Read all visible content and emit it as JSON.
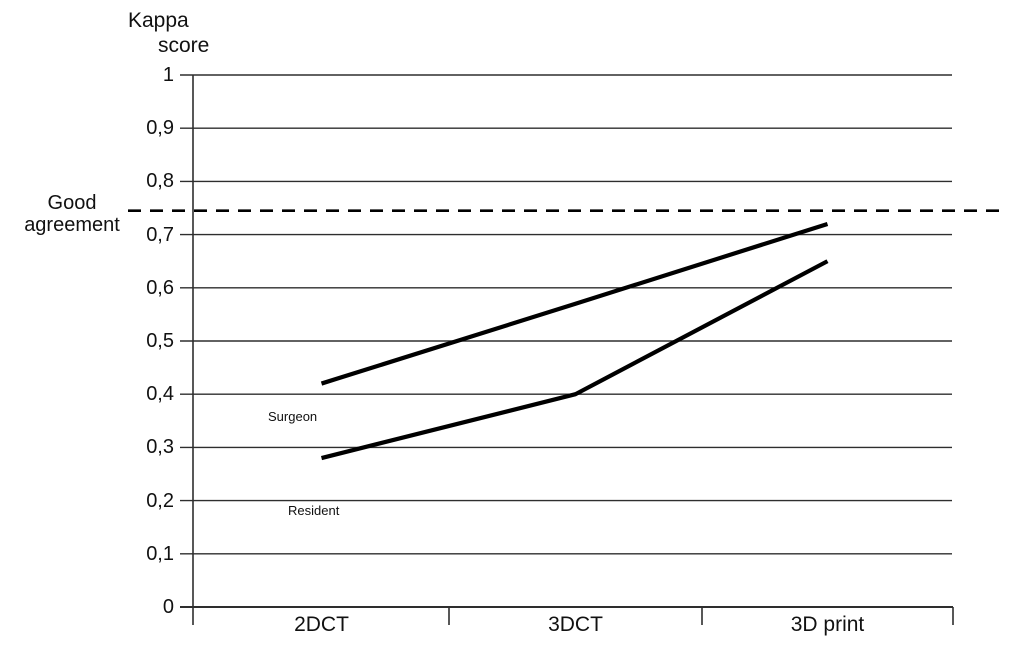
{
  "chart_data": {
    "type": "line",
    "title": "",
    "ylabel": "Kappa score",
    "xlabel": "",
    "categories": [
      "2DCT",
      "3DCT",
      "3D print"
    ],
    "series": [
      {
        "name": "Surgeon",
        "values": [
          0.42,
          0.57,
          0.72
        ]
      },
      {
        "name": "Resident",
        "values": [
          0.28,
          0.4,
          0.65
        ]
      }
    ],
    "ylim": [
      0,
      1
    ],
    "ytick_step": 0.1,
    "ytick_labels": [
      "0",
      "0,1",
      "0,2",
      "0,3",
      "0,4",
      "0,5",
      "0,6",
      "0,7",
      "0,8",
      "0,9",
      "1"
    ],
    "decimal_separator": ",",
    "grid": "horizontal",
    "legend_position": "inline-labels",
    "threshold": {
      "value": 0.745,
      "label": "Good agreement",
      "style": "dashed"
    },
    "line_color": "#000000",
    "grid_color": "#2e2e2e",
    "background_color": "#ffffff"
  },
  "labels": {
    "axis_title_line1": "Kappa",
    "axis_title_line2": "score",
    "threshold_line1": "Good",
    "threshold_line2": "agreement"
  }
}
